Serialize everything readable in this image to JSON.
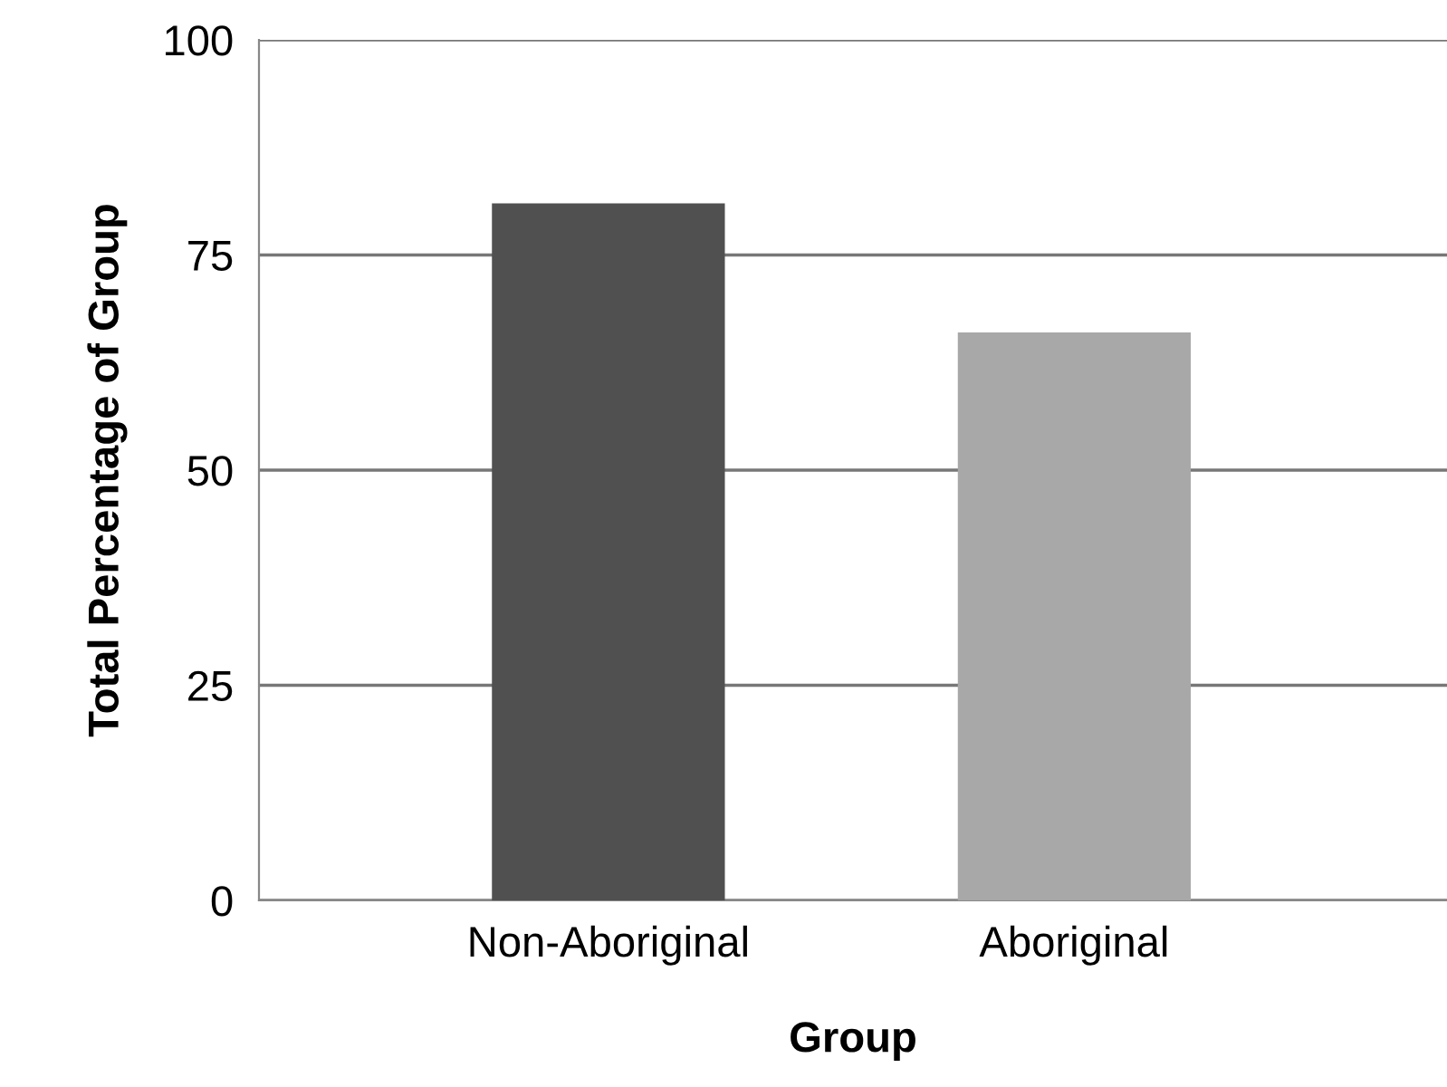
{
  "chart_data": {
    "type": "bar",
    "xlabel": "Group",
    "ylabel": "Total Percentage of Group",
    "categories": [
      "Non-Aboriginal",
      "Aboriginal"
    ],
    "colors": [
      "#505050",
      "#a8a8a8"
    ],
    "values": [
      81,
      66
    ],
    "ylim": [
      0,
      100
    ],
    "yticks": [
      0,
      25,
      50,
      75,
      100
    ],
    "grid": "y",
    "legend": false
  }
}
